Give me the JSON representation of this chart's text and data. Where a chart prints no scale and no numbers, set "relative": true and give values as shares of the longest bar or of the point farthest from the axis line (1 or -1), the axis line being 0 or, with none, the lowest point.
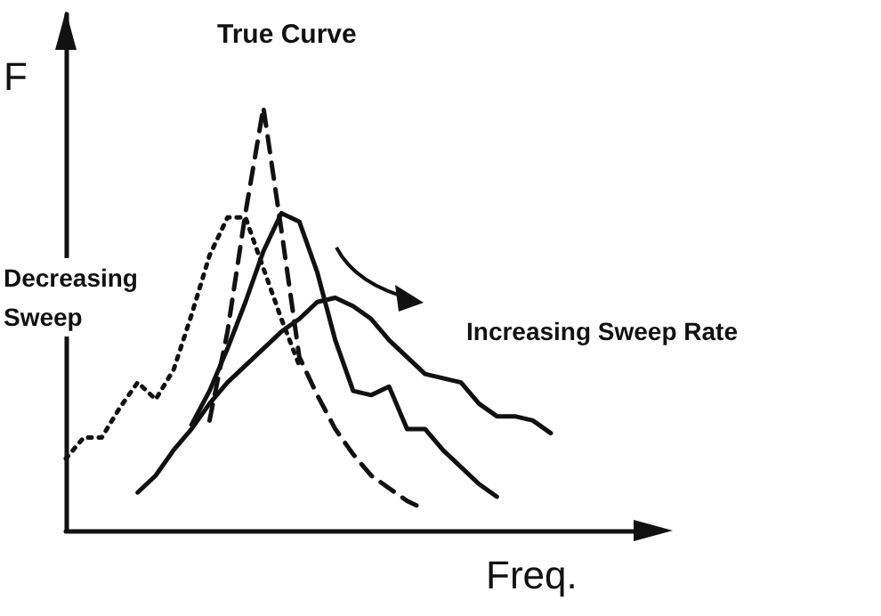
{
  "chart_data": {
    "type": "line",
    "relative": true,
    "title": "True Curve",
    "xlabel": "Freq.",
    "ylabel": "F",
    "annotations": [
      "Decreasing Sweep",
      "Increasing Sweep Rate"
    ],
    "categories": [
      null,
      null,
      null,
      null,
      null,
      null,
      null,
      null,
      null,
      null,
      null,
      null,
      null,
      null,
      null,
      null,
      null,
      null,
      null,
      null,
      null,
      null,
      null,
      null,
      null,
      null,
      null,
      null,
      null,
      null,
      null,
      null,
      null,
      null
    ],
    "series": [
      {
        "color": "#111111",
        "line_style": "dotted",
        "values": [
          0.17,
          0.22,
          0.22,
          0.29,
          0.35,
          0.31,
          0.38,
          0.51,
          0.65,
          0.74,
          0.74,
          0.62,
          0.5,
          0.39,
          null,
          null,
          null,
          null,
          null,
          null,
          null,
          null,
          null,
          null,
          null,
          null,
          null,
          null,
          null,
          null,
          null,
          null,
          null,
          null
        ]
      },
      {
        "color": "#111111",
        "line_style": "dashed",
        "values": [
          null,
          null,
          null,
          null,
          null,
          null,
          null,
          null,
          0.26,
          0.47,
          0.75,
          1.0,
          0.71,
          0.41,
          0.32,
          0.24,
          0.18,
          0.13,
          0.1,
          0.07,
          0.05,
          null,
          null,
          null,
          null,
          null,
          null,
          null,
          null,
          null,
          null,
          null,
          null,
          null
        ]
      },
      {
        "color": "#111111",
        "line_style": "solid",
        "values": [
          null,
          null,
          null,
          null,
          null,
          null,
          null,
          0.25,
          0.33,
          0.43,
          0.54,
          0.66,
          0.75,
          0.73,
          0.61,
          0.45,
          0.33,
          0.32,
          0.34,
          0.24,
          0.24,
          0.19,
          0.15,
          0.11,
          0.08,
          null,
          null,
          null,
          null,
          null,
          null,
          null,
          null,
          null
        ]
      },
      {
        "color": "#111111",
        "line_style": "solid",
        "values": [
          null,
          null,
          null,
          null,
          0.09,
          0.13,
          0.19,
          0.24,
          0.3,
          0.35,
          0.39,
          0.43,
          0.47,
          0.5,
          0.54,
          0.55,
          0.53,
          0.5,
          0.45,
          0.41,
          0.37,
          0.36,
          0.35,
          0.3,
          0.27,
          0.27,
          0.26,
          0.23,
          null,
          null,
          null,
          null,
          null,
          null
        ]
      }
    ],
    "grid": false,
    "marker": "none"
  }
}
